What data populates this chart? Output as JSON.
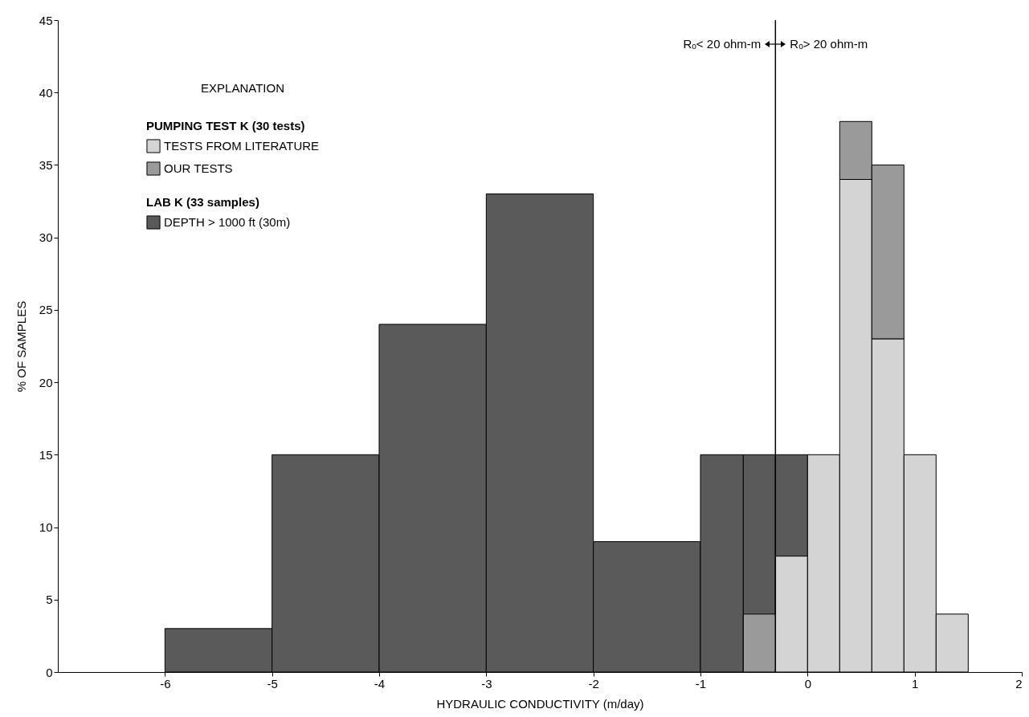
{
  "chart_data": {
    "type": "histogram",
    "xlabel": "HYDRAULIC CONDUCTIVITY (m/day)",
    "ylabel": "% OF SAMPLES",
    "legend_title": "EXPLANATION",
    "xlim": [
      -7,
      2
    ],
    "xticks": [
      -6,
      -5,
      -4,
      -3,
      -2,
      -1,
      0,
      1,
      2
    ],
    "ylim": [
      0,
      45
    ],
    "yticks": [
      0,
      5,
      10,
      15,
      20,
      25,
      30,
      35,
      40,
      45
    ],
    "grid": false,
    "legend": "top left",
    "bins": [
      -6,
      -5,
      -4,
      -3,
      -2,
      -1,
      -0.6,
      -0.3,
      0,
      0.3,
      0.6,
      0.9,
      1.2,
      1.5
    ],
    "series": [
      {
        "name": "DEPTH > 1000 ft (30m)",
        "color": "#5a5a5a",
        "values": [
          3,
          15,
          24,
          33,
          9,
          15,
          15,
          15,
          null,
          null,
          null,
          null,
          null
        ]
      },
      {
        "name": "TESTS FROM LITERATURE",
        "color": "#d4d4d4",
        "values": [
          null,
          null,
          null,
          null,
          null,
          null,
          null,
          8,
          15,
          34,
          23,
          15,
          4
        ]
      },
      {
        "name": "OUR TESTS",
        "color": "#9a9a9a",
        "values": [
          null,
          null,
          null,
          null,
          null,
          null,
          4,
          null,
          null,
          4,
          12,
          null,
          null
        ],
        "base": [
          null,
          null,
          null,
          null,
          null,
          null,
          null,
          null,
          null,
          34,
          23,
          null,
          null
        ]
      }
    ],
    "ref_lines": [
      {
        "axis": "x",
        "value": -0.3
      }
    ],
    "annotations": [
      "Rₒ< 20 ohm-m",
      "Rₒ> 20 ohm-m",
      "PUMPING TEST K (30 tests)",
      "LAB K (33 samples)"
    ]
  }
}
